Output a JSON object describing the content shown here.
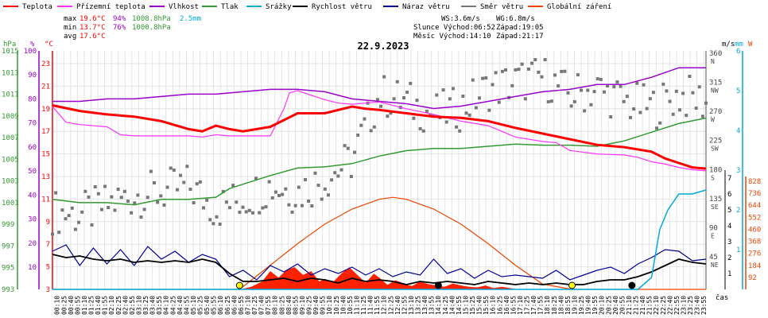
{
  "legend": [
    {
      "label": "Teplota",
      "color": "#ff0000"
    },
    {
      "label": "Přízemní teplota",
      "color": "#ff33ff"
    },
    {
      "label": "Vlhkost",
      "color": "#9900cc"
    },
    {
      "label": "Tlak",
      "color": "#339933"
    },
    {
      "label": "Srážky",
      "color": "#00aadd"
    },
    {
      "label": "Rychlost větru",
      "color": "#000000"
    },
    {
      "label": "Náraz větru",
      "color": "#000099"
    },
    {
      "label": "Směr větru",
      "color": "#777777"
    },
    {
      "label": "Globální záření",
      "color": "#ee4400"
    }
  ],
  "stats": {
    "max_label": "max",
    "max_temp": "19.6°C",
    "max_hum": "94%",
    "max_press": "1008.8hPa",
    "max_rain": "2.5mm",
    "min_label": "min",
    "min_temp": "13.7°C",
    "min_hum": "76%",
    "min_press": "1000.8hPa",
    "avg_label": "avg",
    "avg_temp": "17.6°C"
  },
  "info": {
    "ws": "WS:3.6m/s",
    "wg": "WG:6.8m/s",
    "sun": "Slunce Východ:06:52",
    "sun_set": "Západ:19:05",
    "moon": "Měsíc  Východ:14:10",
    "moon_set": "Západ:21:17"
  },
  "colors": {
    "temp": "#ff0000",
    "ground": "#ff33ff",
    "hum": "#9900cc",
    "press": "#339933",
    "rain": "#00aadd",
    "wind": "#000000",
    "gust": "#000099",
    "dir": "#777777",
    "solar": "#ee4400",
    "solar_fill": "#ff2200"
  },
  "chart_data": {
    "type": "line",
    "title": "22.9.2023",
    "x_unit": "čas",
    "x_ticks": [
      "00:10",
      "00:25",
      "00:40",
      "00:55",
      "01:10",
      "01:25",
      "01:40",
      "01:55",
      "02:10",
      "02:25",
      "02:40",
      "02:55",
      "03:10",
      "03:25",
      "03:40",
      "03:55",
      "04:10",
      "04:25",
      "04:40",
      "04:55",
      "05:10",
      "05:25",
      "05:40",
      "05:55",
      "06:10",
      "06:25",
      "06:40",
      "06:55",
      "07:10",
      "07:25",
      "07:40",
      "07:55",
      "08:10",
      "08:25",
      "08:40",
      "08:55",
      "09:10",
      "09:25",
      "09:40",
      "09:55",
      "10:10",
      "10:25",
      "10:40",
      "10:55",
      "11:10",
      "11:25",
      "11:40",
      "11:55",
      "12:10",
      "12:25",
      "12:40",
      "12:55",
      "13:10",
      "13:25",
      "13:40",
      "13:55",
      "14:10",
      "14:25",
      "14:40",
      "14:55",
      "15:10",
      "15:25",
      "15:40",
      "15:55",
      "16:10",
      "16:25",
      "16:40",
      "16:55",
      "17:10",
      "17:25",
      "17:40",
      "17:55",
      "18:10",
      "18:25",
      "18:40",
      "18:55",
      "19:10",
      "19:25",
      "19:40",
      "19:55",
      "20:10",
      "20:25",
      "20:40",
      "20:55",
      "21:10",
      "21:25",
      "21:40",
      "21:55",
      "22:10",
      "22:25",
      "22:40",
      "22:55",
      "23:10",
      "23:25",
      "23:40",
      "23:55"
    ],
    "axes": {
      "pressure": {
        "label": "hPa",
        "ticks": [
          "1015",
          "1013",
          "1011",
          "1009",
          "1007",
          "1005",
          "1003",
          "1001",
          "999",
          "997",
          "995",
          "993"
        ],
        "color": "#339933"
      },
      "humidity": {
        "label": "%",
        "ticks": [
          "100",
          "90",
          "80",
          "70",
          "60",
          "50",
          "40",
          "30",
          "20",
          "10"
        ],
        "color": "#9900cc"
      },
      "temperature": {
        "label": "°C",
        "ticks": [
          "23",
          "21",
          "19",
          "17",
          "15",
          "13",
          "11",
          "9",
          "7",
          "5",
          "3"
        ],
        "color": "#ff0000"
      },
      "direction": {
        "ticks": [
          "360",
          "315",
          "270",
          "225",
          "180",
          "135",
          "90",
          "45"
        ],
        "letters": [
          "N",
          "NW",
          "W",
          "SW",
          "S",
          "SE",
          "E",
          "NE"
        ]
      },
      "wind": {
        "label": "m/s",
        "ticks": [
          "7",
          "6",
          "5",
          "4",
          "3",
          "2",
          "1"
        ]
      },
      "rain": {
        "label": "mm",
        "ticks": [
          "6",
          "5",
          "4",
          "3",
          "2",
          "1"
        ]
      },
      "solar": {
        "label": "W",
        "ticks": [
          "828",
          "736",
          "644",
          "552",
          "460",
          "368",
          "276",
          "184",
          "92"
        ]
      }
    },
    "series": [
      {
        "key": "temperature",
        "name": "Teplota",
        "unit": "°C",
        "x": [
          0,
          1,
          2,
          3,
          4,
          5,
          5.5,
          6,
          6.5,
          7,
          8,
          9,
          10,
          11,
          11.5,
          12,
          13,
          14,
          15,
          16,
          17,
          18,
          19,
          20,
          21,
          22,
          22.5,
          23,
          23.5,
          24
        ],
        "values": [
          19.3,
          18.8,
          18.5,
          18.3,
          17.9,
          17.2,
          17.0,
          17.5,
          17.2,
          17.0,
          17.4,
          18.6,
          18.6,
          19.2,
          19.0,
          18.9,
          18.6,
          18.3,
          18.2,
          17.9,
          17.3,
          16.8,
          16.3,
          15.8,
          15.6,
          15.2,
          14.6,
          14.2,
          13.8,
          13.7
        ]
      },
      {
        "key": "ground",
        "name": "Přízemní teplota",
        "unit": "°C",
        "x": [
          0,
          0.5,
          1,
          2,
          2.5,
          3,
          4,
          5,
          5.5,
          6,
          6.5,
          7,
          8,
          8.5,
          8.7,
          9,
          10,
          10.5,
          11,
          12,
          13,
          14,
          15,
          16,
          17,
          18,
          18.5,
          19,
          20,
          21,
          21.5,
          22,
          22.5,
          23,
          23.5,
          24
        ],
        "values": [
          19.2,
          17.8,
          17.6,
          17.4,
          16.7,
          16.6,
          16.6,
          16.6,
          16.5,
          16.7,
          16.6,
          16.6,
          16.6,
          19.0,
          20.4,
          20.6,
          19.8,
          19.5,
          19.4,
          19.6,
          19.0,
          18.5,
          17.9,
          17.5,
          16.5,
          16.1,
          16.0,
          15.3,
          15.0,
          14.9,
          14.7,
          14.3,
          14.1,
          13.8,
          13.6,
          13.5
        ]
      },
      {
        "key": "humidity",
        "name": "Vlhkost",
        "unit": "%",
        "x": [
          0,
          1,
          2,
          3,
          4,
          5,
          6,
          7,
          8,
          9,
          10,
          11,
          12,
          13,
          14,
          15,
          16,
          17,
          18,
          19,
          20,
          21,
          22,
          23,
          24
        ],
        "values": [
          79,
          79,
          80,
          80,
          81,
          82,
          82,
          83,
          84,
          84,
          83,
          80,
          79,
          78,
          76,
          77,
          79,
          81,
          83,
          84,
          86,
          86,
          89,
          93,
          93
        ]
      },
      {
        "key": "pressure",
        "name": "Tlak",
        "unit": "hPa",
        "x": [
          0,
          1,
          2,
          3,
          4,
          5,
          6,
          6.5,
          7,
          8,
          9,
          10,
          11,
          12,
          13,
          14,
          15,
          16,
          17,
          18,
          19,
          20,
          21,
          22,
          23,
          24
        ],
        "values": [
          1001.3,
          1001.0,
          1001.0,
          1000.8,
          1001.3,
          1001.3,
          1001.5,
          1002.3,
          1002.7,
          1003.5,
          1004.2,
          1004.3,
          1004.6,
          1005.3,
          1005.8,
          1006.0,
          1006.0,
          1006.2,
          1006.4,
          1006.3,
          1006.3,
          1006.2,
          1006.7,
          1007.5,
          1008.3,
          1008.8
        ]
      },
      {
        "key": "wind",
        "name": "Rychlost větru",
        "unit": "m/s",
        "x": [
          0,
          0.5,
          1,
          1.5,
          2,
          2.5,
          3,
          3.5,
          4,
          4.5,
          5,
          5.5,
          6,
          6.5,
          7,
          7.5,
          8,
          8.5,
          9,
          9.5,
          10,
          10.5,
          11,
          11.5,
          12,
          12.5,
          13,
          13.5,
          14,
          14.5,
          15,
          15.5,
          16,
          16.5,
          17,
          17.5,
          18,
          18.5,
          19,
          19.5,
          20,
          20.5,
          21,
          21.5,
          22,
          22.5,
          23,
          23.5,
          24
        ],
        "values": [
          2.2,
          2.0,
          2.1,
          1.9,
          1.8,
          1.9,
          1.7,
          1.8,
          1.7,
          1.8,
          1.7,
          1.9,
          1.7,
          1.0,
          0.5,
          0.5,
          0.6,
          0.7,
          0.5,
          0.7,
          0.6,
          0.4,
          0.7,
          0.5,
          0.6,
          0.5,
          0.3,
          0.5,
          0.4,
          0.5,
          0.4,
          0.3,
          0.5,
          0.4,
          0.3,
          0.4,
          0.3,
          0.4,
          0.3,
          0.3,
          0.5,
          0.6,
          0.6,
          0.8,
          1.1,
          1.5,
          1.9,
          1.7,
          1.6
        ]
      },
      {
        "key": "gust",
        "name": "Náraz větru",
        "unit": "m/s",
        "x": [
          0,
          0.5,
          1,
          1.5,
          2,
          2.5,
          3,
          3.5,
          4,
          4.5,
          5,
          5.5,
          6,
          6.5,
          7,
          7.5,
          8,
          8.5,
          9,
          9.5,
          10,
          10.5,
          11,
          11.5,
          12,
          12.5,
          13,
          13.5,
          14,
          14.5,
          15,
          15.5,
          16,
          16.5,
          17,
          17.5,
          18,
          18.5,
          19,
          19.5,
          20,
          20.5,
          21,
          21.5,
          22,
          22.5,
          23,
          23.5,
          24
        ],
        "values": [
          2.4,
          2.8,
          1.5,
          2.6,
          1.6,
          2.5,
          1.5,
          2.7,
          1.9,
          2.4,
          1.7,
          2.2,
          1.9,
          0.8,
          1.2,
          0.6,
          1.5,
          1.1,
          1.6,
          0.9,
          1.3,
          1.0,
          1.4,
          0.9,
          1.3,
          0.8,
          1.1,
          0.9,
          1.9,
          1.0,
          1.3,
          0.7,
          1.2,
          0.8,
          0.9,
          0.8,
          0.7,
          1.2,
          0.6,
          0.9,
          1.2,
          1.4,
          1.0,
          1.6,
          2.0,
          2.5,
          2.4,
          1.8,
          1.9
        ]
      },
      {
        "key": "direction",
        "name": "Směr větru",
        "unit": "°",
        "x": [
          0,
          1,
          2,
          3,
          4,
          5,
          6,
          7,
          8,
          9,
          10,
          11,
          12,
          13,
          14,
          15,
          16,
          17,
          18,
          19,
          20,
          21,
          22,
          23,
          24
        ],
        "values": [
          120,
          115,
          130,
          145,
          150,
          160,
          125,
          140,
          160,
          150,
          170,
          200,
          300,
          290,
          270,
          280,
          310,
          320,
          330,
          300,
          310,
          290,
          280,
          300,
          290
        ]
      },
      {
        "key": "rain",
        "name": "Srážky",
        "unit": "mm",
        "x": [
          0,
          21.5,
          22,
          22.3,
          22.6,
          23,
          23.5,
          24
        ],
        "values": [
          0,
          0,
          0.3,
          1.5,
          2.0,
          2.4,
          2.4,
          2.5
        ]
      },
      {
        "key": "solar",
        "name": "Globální záření",
        "unit": "W",
        "x": [
          0,
          6.87,
          8,
          9,
          10,
          11,
          12,
          12.5,
          13,
          14,
          15,
          16,
          17,
          18,
          19.08,
          24
        ],
        "values": [
          0,
          0,
          185,
          350,
          500,
          615,
          690,
          705,
          690,
          615,
          500,
          350,
          185,
          40,
          0,
          0
        ]
      }
    ],
    "solar_measured": {
      "x": [
        6.9,
        7.3,
        7.7,
        8.0,
        8.3,
        8.6,
        8.9,
        9.2,
        9.5,
        9.8,
        10.0,
        10.3,
        10.6,
        10.9,
        11.2,
        11.5,
        11.8,
        12.0,
        12.3,
        12.6,
        12.9,
        13.2,
        13.5,
        13.8,
        14.1,
        14.4,
        14.7,
        15.0,
        15.3,
        15.6,
        15.9,
        16.2,
        16.5,
        16.8,
        17.1
      ],
      "values": [
        0,
        20,
        60,
        140,
        90,
        150,
        170,
        110,
        140,
        60,
        80,
        55,
        120,
        170,
        110,
        50,
        120,
        90,
        35,
        70,
        45,
        25,
        60,
        40,
        30,
        20,
        45,
        30,
        20,
        15,
        30,
        10,
        20,
        10,
        0
      ]
    },
    "markers": [
      {
        "name": "sunrise",
        "x": 6.87,
        "color": "#ffff00"
      },
      {
        "name": "sunset",
        "x": 19.08,
        "color": "#ffff00"
      },
      {
        "name": "moonrise",
        "x": 14.17,
        "color": "#000000"
      },
      {
        "name": "moonset",
        "x": 21.28,
        "color": "#000000"
      }
    ],
    "grid": true
  }
}
